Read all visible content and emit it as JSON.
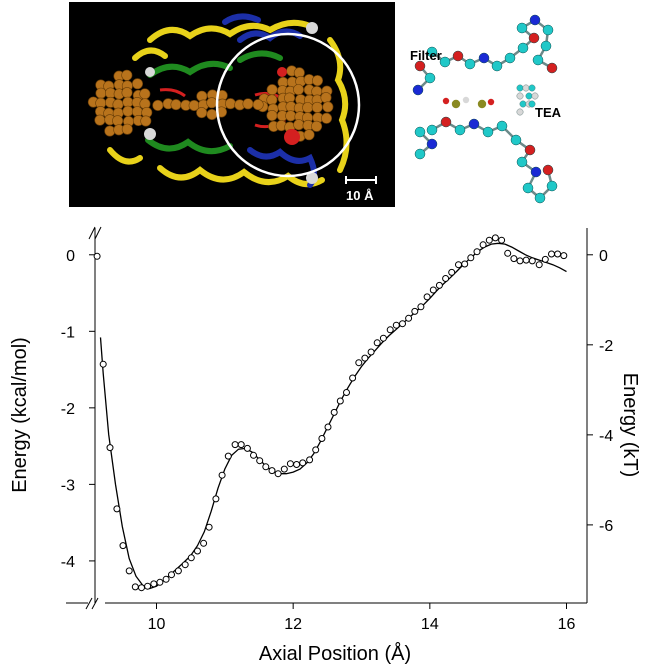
{
  "insets": {
    "scale_bar_label": "10 Å",
    "filter_label": "Filter",
    "tea_label": "TEA"
  },
  "colors": {
    "helix_yellow": "#e8d21a",
    "helix_green": "#1f8a1f",
    "helix_blue": "#1c2fa8",
    "atom_orange": "#b8731c",
    "atom_cyan": "#20c8c8",
    "atom_red": "#d42020",
    "atom_blue": "#1a2ad4",
    "atom_white": "#d8d8d8",
    "ion_olive": "#8a8a22"
  },
  "chart_data": {
    "type": "scatter",
    "xlabel": "Axial Position (Å)",
    "ylabel": "Energy (kcal/mol)",
    "y2label": "Energy (kT)",
    "xlim": [
      9.1,
      16.3
    ],
    "ylim": [
      -4.55,
      0.35
    ],
    "xticks": [
      "10",
      "12",
      "14",
      "16"
    ],
    "yticks": [
      "0",
      "-1",
      "-2",
      "-3",
      "-4"
    ],
    "y2ticks": [
      "0",
      "-2",
      "-4",
      "-6"
    ],
    "y2_scale_kT_per_kcal": 1.7,
    "axis_breaks": true,
    "series": [
      {
        "style": "open-circles",
        "x": [
          9.13,
          9.22,
          9.32,
          9.42,
          9.51,
          9.6,
          9.69,
          9.78,
          9.87,
          9.96,
          10.05,
          10.14,
          10.22,
          10.32,
          10.42,
          10.51,
          10.6,
          10.69,
          10.77,
          10.87,
          10.96,
          11.05,
          11.15,
          11.24,
          11.33,
          11.42,
          11.51,
          11.6,
          11.69,
          11.78,
          11.87,
          11.96,
          12.05,
          12.14,
          12.24,
          12.33,
          12.42,
          12.51,
          12.6,
          12.69,
          12.78,
          12.87,
          12.96,
          13.05,
          13.14,
          13.23,
          13.32,
          13.42,
          13.51,
          13.6,
          13.69,
          13.78,
          13.87,
          13.96,
          14.05,
          14.14,
          14.23,
          14.32,
          14.42,
          14.51,
          14.6,
          14.69,
          14.78,
          14.87,
          14.96,
          15.05,
          15.14,
          15.23,
          15.32,
          15.41,
          15.5,
          15.6,
          15.69,
          15.78,
          15.87,
          15.96
        ],
        "y": [
          -0.02,
          -1.43,
          -2.52,
          -3.32,
          -3.8,
          -4.13,
          -4.34,
          -4.35,
          -4.33,
          -4.3,
          -4.28,
          -4.24,
          -4.18,
          -4.13,
          -4.05,
          -3.96,
          -3.87,
          -3.77,
          -3.56,
          -3.19,
          -2.88,
          -2.63,
          -2.48,
          -2.48,
          -2.53,
          -2.62,
          -2.69,
          -2.77,
          -2.82,
          -2.86,
          -2.8,
          -2.73,
          -2.74,
          -2.72,
          -2.68,
          -2.55,
          -2.4,
          -2.25,
          -2.06,
          -1.91,
          -1.8,
          -1.61,
          -1.41,
          -1.35,
          -1.27,
          -1.15,
          -1.09,
          -0.98,
          -0.92,
          -0.9,
          -0.83,
          -0.74,
          -0.68,
          -0.55,
          -0.46,
          -0.4,
          -0.31,
          -0.23,
          -0.13,
          -0.12,
          -0.04,
          0.04,
          0.13,
          0.19,
          0.22,
          0.19,
          0.02,
          -0.05,
          -0.08,
          -0.07,
          -0.08,
          -0.13,
          -0.06,
          0.01,
          0.01,
          -0.01
        ]
      },
      {
        "style": "line",
        "x": [
          9.18,
          9.22,
          9.3,
          9.4,
          9.5,
          9.6,
          9.7,
          9.8,
          9.9,
          10.0,
          10.1,
          10.2,
          10.3,
          10.4,
          10.5,
          10.6,
          10.7,
          10.8,
          10.9,
          11.0,
          11.1,
          11.2,
          11.3,
          11.4,
          11.5,
          11.6,
          11.7,
          11.8,
          11.9,
          12.0,
          12.1,
          12.2,
          12.3,
          12.4,
          12.5,
          12.6,
          12.7,
          12.8,
          12.9,
          13.0,
          13.1,
          13.2,
          13.3,
          13.4,
          13.5,
          13.6,
          13.7,
          13.8,
          13.9,
          14.0,
          14.1,
          14.2,
          14.3,
          14.4,
          14.5,
          14.6,
          14.7,
          14.8,
          14.9,
          15.0,
          15.1,
          15.2,
          15.3,
          15.4,
          15.5,
          15.6,
          15.7,
          15.8,
          15.9,
          16.0
        ],
        "y": [
          -1.08,
          -1.55,
          -2.35,
          -3.0,
          -3.55,
          -3.97,
          -4.2,
          -4.32,
          -4.36,
          -4.33,
          -4.26,
          -4.18,
          -4.1,
          -4.02,
          -3.93,
          -3.8,
          -3.62,
          -3.35,
          -3.05,
          -2.8,
          -2.62,
          -2.54,
          -2.53,
          -2.58,
          -2.67,
          -2.76,
          -2.83,
          -2.86,
          -2.86,
          -2.84,
          -2.8,
          -2.72,
          -2.6,
          -2.44,
          -2.26,
          -2.08,
          -1.9,
          -1.74,
          -1.59,
          -1.46,
          -1.35,
          -1.25,
          -1.15,
          -1.06,
          -0.98,
          -0.9,
          -0.82,
          -0.74,
          -0.66,
          -0.57,
          -0.47,
          -0.38,
          -0.3,
          -0.21,
          -0.12,
          -0.04,
          0.04,
          0.1,
          0.14,
          0.15,
          0.14,
          0.1,
          0.05,
          0.0,
          -0.04,
          -0.07,
          -0.1,
          -0.13,
          -0.17,
          -0.22
        ]
      }
    ]
  }
}
